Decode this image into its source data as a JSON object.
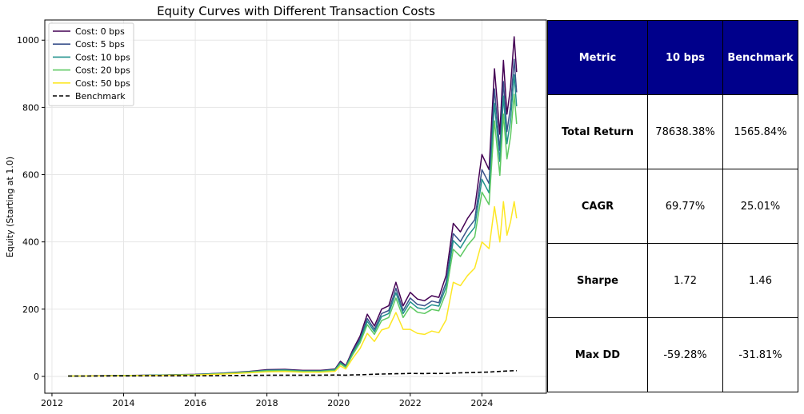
{
  "chart_data": {
    "type": "line",
    "title": "Equity Curves with Different Transaction Costs",
    "xlabel": "",
    "ylabel": "Equity (Starting at 1.0)",
    "xlim": [
      2011.8,
      2025.8
    ],
    "ylim": [
      -50,
      1060
    ],
    "x_ticks": [
      "2012",
      "2014",
      "2016",
      "2018",
      "2020",
      "2022",
      "2024"
    ],
    "y_ticks": [
      "0",
      "200",
      "400",
      "600",
      "800",
      "1000"
    ],
    "grid": true,
    "legend_position": "top-left",
    "x": [
      2012.45,
      2013.0,
      2014.0,
      2015.0,
      2016.0,
      2016.8,
      2017.5,
      2018.0,
      2018.5,
      2019.0,
      2019.5,
      2019.9,
      2020.05,
      2020.2,
      2020.4,
      2020.6,
      2020.8,
      2021.0,
      2021.2,
      2021.4,
      2021.6,
      2021.8,
      2022.0,
      2022.2,
      2022.4,
      2022.6,
      2022.8,
      2023.0,
      2023.2,
      2023.4,
      2023.6,
      2023.8,
      2024.0,
      2024.2,
      2024.35,
      2024.5,
      2024.6,
      2024.7,
      2024.8,
      2024.9,
      2024.97
    ],
    "series": [
      {
        "name": "Cost: 0 bps",
        "color": "#440154",
        "dash": false,
        "values": [
          1,
          1.5,
          2.5,
          4,
          6,
          10,
          15,
          20,
          21,
          18,
          18,
          22,
          45,
          32,
          80,
          120,
          185,
          150,
          200,
          210,
          280,
          210,
          250,
          230,
          225,
          240,
          235,
          300,
          455,
          430,
          470,
          500,
          660,
          615,
          915,
          720,
          940,
          780,
          860,
          1010,
          905
        ]
      },
      {
        "name": "Cost: 5 bps",
        "color": "#3b528b",
        "dash": false,
        "values": [
          1,
          1.5,
          2.4,
          3.8,
          5.6,
          9.4,
          14,
          18.6,
          19.5,
          16.8,
          16.8,
          20.5,
          42,
          30,
          75,
          112,
          172,
          140,
          187,
          196,
          262,
          196,
          233,
          214,
          210,
          224,
          219,
          280,
          425,
          401,
          438,
          466,
          615,
          574,
          855,
          672,
          877,
          728,
          803,
          943,
          845
        ]
      },
      {
        "name": "Cost: 10 bps",
        "color": "#21918c",
        "dash": false,
        "values": [
          1,
          1.5,
          2.3,
          3.6,
          5.4,
          9,
          13.5,
          17.8,
          18.6,
          16,
          16,
          19.6,
          40,
          28.5,
          71,
          107,
          164,
          133,
          178,
          187,
          249,
          187,
          222,
          204,
          200,
          213,
          209,
          266,
          404,
          382,
          417,
          444,
          586,
          546,
          812,
          639,
          834,
          692,
          763,
          897,
          803
        ]
      },
      {
        "name": "Cost: 20 bps",
        "color": "#5ec962",
        "dash": false,
        "values": [
          1,
          1.4,
          2.2,
          3.4,
          5,
          8.4,
          12.6,
          16.6,
          17.4,
          15,
          15,
          18.3,
          37,
          26.6,
          66,
          100,
          154,
          125,
          166,
          175,
          233,
          175,
          208,
          191,
          187,
          199,
          195,
          249,
          378,
          357,
          390,
          415,
          548,
          511,
          760,
          598,
          780,
          647,
          714,
          839,
          751
        ]
      },
      {
        "name": "Cost: 50 bps",
        "color": "#fde725",
        "dash": false,
        "values": [
          1,
          1.3,
          2,
          2.9,
          4.2,
          7,
          10.5,
          13.8,
          14.4,
          12.4,
          12.4,
          15.2,
          31,
          22,
          55,
          83,
          128,
          104,
          138,
          145,
          190,
          140,
          140,
          128,
          125,
          135,
          130,
          168,
          280,
          270,
          300,
          322,
          400,
          380,
          505,
          400,
          520,
          420,
          460,
          520,
          470
        ]
      },
      {
        "name": "Benchmark",
        "color": "#000000",
        "dash": true,
        "values": [
          1,
          1.2,
          1.5,
          1.7,
          1.9,
          2.5,
          3,
          3.5,
          3.7,
          3.6,
          3.8,
          4.2,
          4.0,
          3.8,
          4.5,
          5,
          5.5,
          6.5,
          7,
          7.5,
          8,
          8.3,
          9,
          8.8,
          8.5,
          8.9,
          8.7,
          9,
          10,
          10.5,
          11,
          11.5,
          12.5,
          13,
          14,
          15,
          15.5,
          16,
          16.5,
          17,
          17
        ]
      }
    ]
  },
  "table": {
    "headers": [
      "Metric",
      "10 bps",
      "Benchmark"
    ],
    "header_color": "#00008b",
    "rows": [
      [
        "Total Return",
        "78638.38%",
        "1565.84%"
      ],
      [
        "CAGR",
        "69.77%",
        "25.01%"
      ],
      [
        "Sharpe",
        "1.72",
        "1.46"
      ],
      [
        "Max DD",
        "-59.28%",
        "-31.81%"
      ]
    ]
  }
}
